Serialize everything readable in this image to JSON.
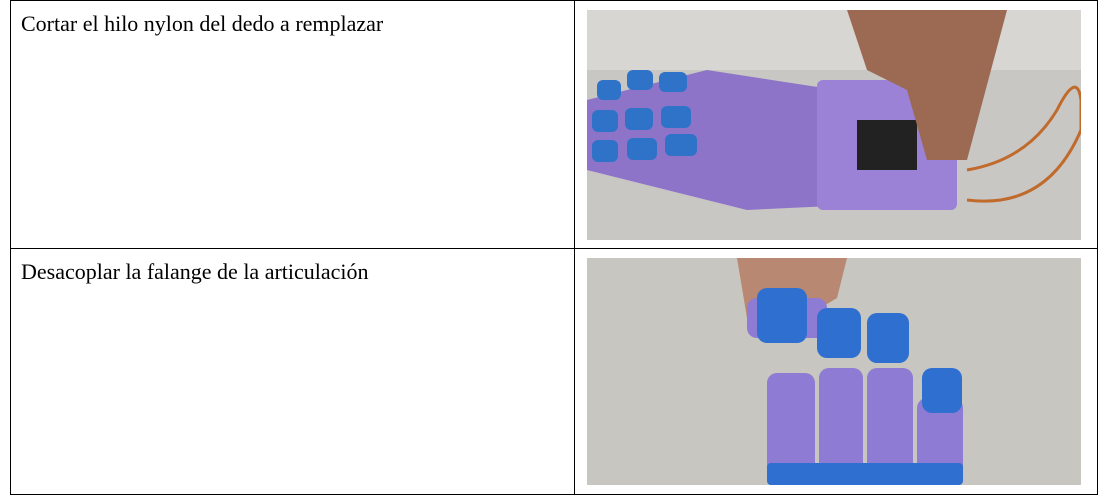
{
  "table": {
    "rows": [
      [
        "Cortar el hilo nylon del dedo a remplazar"
      ],
      [
        "Desacoplar la falange de la articulación"
      ]
    ]
  }
}
